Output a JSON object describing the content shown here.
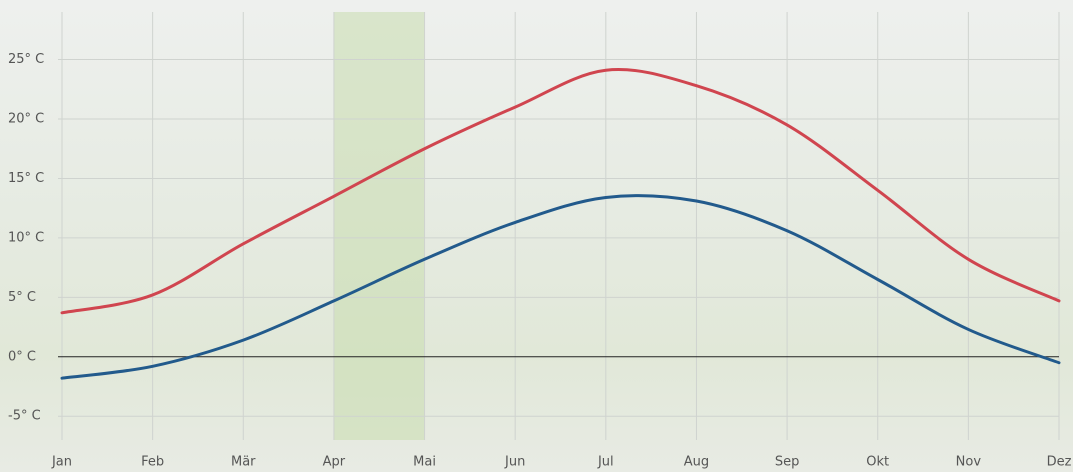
{
  "chart_data": {
    "type": "line",
    "categories": [
      "Jan",
      "Feb",
      "Mär",
      "Apr",
      "Mai",
      "Jun",
      "Jul",
      "Aug",
      "Sep",
      "Okt",
      "Nov",
      "Dez"
    ],
    "series": [
      {
        "color": "#d0454f",
        "values": [
          3.7,
          5.2,
          9.5,
          13.5,
          17.5,
          21,
          24.1,
          22.8,
          19.5,
          14,
          8.2,
          4.7
        ]
      },
      {
        "color": "#225a8c",
        "values": [
          -1.8,
          -0.8,
          1.4,
          4.7,
          8.2,
          11.3,
          13.4,
          13.1,
          10.6,
          6.5,
          2.3,
          -0.5
        ]
      }
    ],
    "ylim": [
      -7,
      29
    ],
    "yticks": [
      {
        "value": -5,
        "label": "-5° C"
      },
      {
        "value": 0,
        "label": "0° C"
      },
      {
        "value": 5,
        "label": "5° C"
      },
      {
        "value": 10,
        "label": "10° C"
      },
      {
        "value": 15,
        "label": "15° C"
      },
      {
        "value": 20,
        "label": "20° C"
      },
      {
        "value": 25,
        "label": "25° C"
      }
    ],
    "grid": true,
    "highlight": [
      "Apr",
      "Mai"
    ]
  }
}
